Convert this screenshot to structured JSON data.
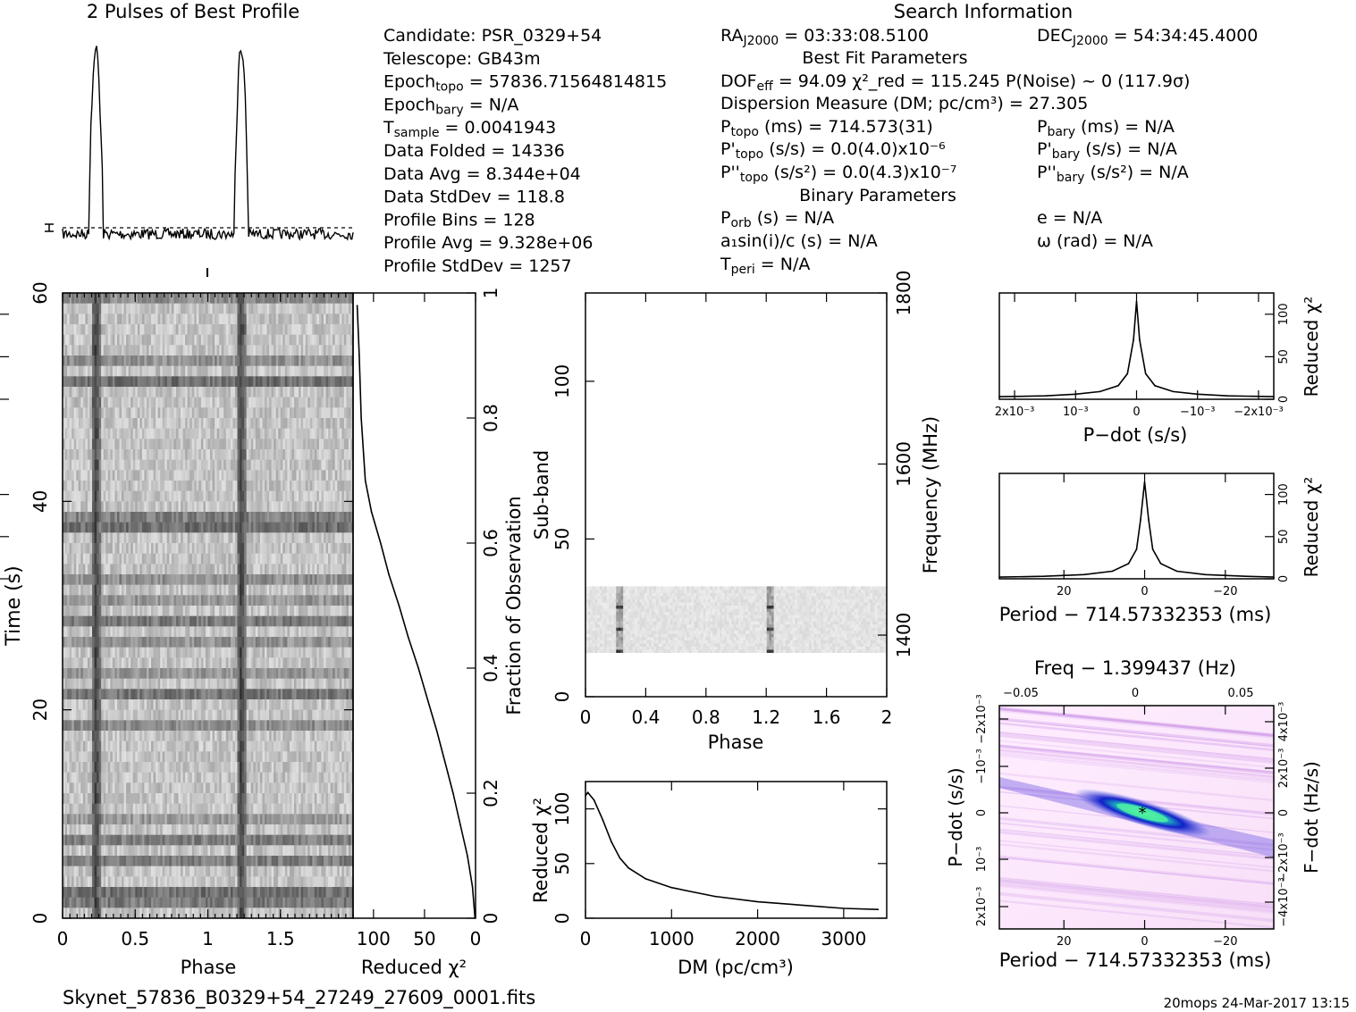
{
  "title": "2 Pulses of Best Profile",
  "search_info_title": "Search Information",
  "best_fit_title": "Best Fit Parameters",
  "binary_title": "Binary Parameters",
  "filename": "Skynet_57836_B0329+54_27249_27609_0001.fits",
  "footer_right": "20mops 24-Mar-2017 13:15",
  "info_left": [
    "Candidate:  PSR_0329+54",
    "Telescope:  GB43m",
    "Epoch_topo = 57836.71564814815",
    "Epoch_bary = N/A",
    "T_sample    =  0.0041943",
    "Data Folded  =  14336",
    "Data Avg     =  8.344e+04",
    "Data StdDev  =  118.8",
    "Profile Bins  =  128",
    "Profile Avg   =  9.328e+06",
    "Profile StdDev =  1257"
  ],
  "info_mid": {
    "ra": "RA_J2000 = 03:33:08.5100",
    "dof": "DOF_eff = 94.09  χ²_red = 115.245  P(Noise) ~ 0   (117.9σ)",
    "dm": "Dispersion Measure (DM; pc/cm³) = 27.305",
    "ptopo": "P_topo (ms) =  714.573(31)",
    "pdtopo": "P'_topo (s/s) = 0.0(4.0)x10⁻⁶",
    "pddtopo": "P''_topo (s/s²) = 0.0(4.3)x10⁻⁷",
    "porb": "P_orb (s) = N/A",
    "a1": "a₁sin(i)/c (s) = N/A",
    "tperi": "T_peri = N/A"
  },
  "info_right": {
    "dec": "DEC_J2000 = 54:34:45.4000",
    "pbary": "P_bary (ms) = N/A",
    "pdbary": "P'_bary (s/s) = N/A",
    "pddbary": "P''_bary (s/s²) = N/A",
    "e": "e = N/A",
    "omega": "ω (rad) = N/A"
  },
  "colors": {
    "axis": "#000000",
    "grey_dark": "#1a1a1a",
    "blue": "#1020c8",
    "magenta": "#ffe8ff",
    "green": "#40e080"
  },
  "chart_data": [
    {
      "id": "profile",
      "type": "line",
      "title": "2 Pulses of Best Profile",
      "xlim": [
        0,
        2
      ],
      "pulse_phases": [
        0.23,
        1.23
      ],
      "error_bar_label": ""
    },
    {
      "id": "time-phase",
      "type": "heatmap",
      "xlabel": "Phase",
      "ylabel": "Time (s)",
      "x_ticks": [
        "0",
        "0.5",
        "1",
        "1.5"
      ],
      "x_tick_values": [
        0,
        0.5,
        1,
        1.5
      ],
      "y_ticks": [
        "0",
        "20",
        "40",
        "60"
      ],
      "y_tick_values": [
        0,
        20,
        40,
        60
      ],
      "xlim": [
        0,
        2
      ],
      "ylim": [
        0,
        60
      ],
      "pulse_phases": [
        0.23,
        1.23
      ]
    },
    {
      "id": "chi-vs-time",
      "type": "line",
      "xlabel": "Reduced χ²",
      "ylabel": "Fraction of Observation",
      "x_ticks": [
        "100",
        "50",
        "0"
      ],
      "x_tick_values": [
        100,
        50,
        0
      ],
      "y_ticks": [
        "0",
        "0.2",
        "0.4",
        "0.6",
        "0.8",
        "1"
      ],
      "y_tick_values": [
        0,
        0.2,
        0.4,
        0.6,
        0.8,
        1
      ],
      "xlim": [
        120,
        0
      ],
      "ylim": [
        0,
        1
      ],
      "x": [
        0.5,
        3,
        8,
        15,
        22,
        30,
        38,
        47,
        56,
        66,
        75,
        85,
        93,
        102,
        108,
        112,
        114,
        116
      ],
      "y": [
        0.0,
        0.05,
        0.1,
        0.15,
        0.2,
        0.25,
        0.3,
        0.35,
        0.4,
        0.45,
        0.5,
        0.55,
        0.6,
        0.65,
        0.7,
        0.8,
        0.9,
        0.98
      ]
    },
    {
      "id": "subband-phase",
      "type": "heatmap",
      "xlabel": "Phase",
      "ylabel": "Sub-band",
      "y2label": "Frequency (MHz)",
      "x_ticks": [
        "0",
        "0.4",
        "0.8",
        "1.2",
        "1.6",
        "2"
      ],
      "x_tick_values": [
        0,
        0.4,
        0.8,
        1.2,
        1.6,
        2
      ],
      "y_ticks": [
        "0",
        "50",
        "100"
      ],
      "y_tick_values": [
        0,
        50,
        100
      ],
      "y2_ticks": [
        "1400",
        "1600",
        "1800"
      ],
      "y2_tick_values": [
        1400,
        1600,
        1800
      ],
      "xlim": [
        0,
        2
      ],
      "ylim": [
        0,
        128
      ],
      "y2lim": [
        1328,
        1800
      ],
      "band_range": [
        14,
        35
      ],
      "pulse_phases": [
        0.23,
        1.23
      ]
    },
    {
      "id": "dm-chi",
      "type": "line",
      "xlabel": "DM (pc/cm³)",
      "ylabel": "Reduced χ²",
      "x_ticks": [
        "0",
        "1000",
        "2000",
        "3000"
      ],
      "x_tick_values": [
        0,
        1000,
        2000,
        3000
      ],
      "y_ticks": [
        "0",
        "50",
        "100"
      ],
      "y_tick_values": [
        0,
        50,
        100
      ],
      "xlim": [
        0,
        3500
      ],
      "ylim": [
        0,
        125
      ],
      "x": [
        0,
        27,
        100,
        200,
        300,
        400,
        500,
        700,
        1000,
        1500,
        2000,
        2500,
        3000,
        3400
      ],
      "y": [
        112,
        115,
        108,
        90,
        70,
        55,
        46,
        36,
        28,
        20,
        15,
        12,
        9,
        8
      ]
    },
    {
      "id": "pdot-chi",
      "type": "line",
      "xlabel": "P−dot (s/s)",
      "ylabel": "Reduced χ²",
      "x_ticks": [
        "2x10⁻³",
        "10⁻³",
        "0",
        "−10⁻³",
        "−2x10⁻³"
      ],
      "x_tick_values": [
        0.002,
        0.001,
        0,
        -0.001,
        -0.002
      ],
      "y_ticks": [
        "0",
        "50",
        "100"
      ],
      "y_tick_values": [
        0,
        50,
        100
      ],
      "xlim": [
        0.00225,
        -0.00225
      ],
      "ylim": [
        0,
        125
      ],
      "x": [
        0.00225,
        0.0015,
        0.001,
        0.0006,
        0.0003,
        0.00015,
        5e-05,
        0,
        -5e-05,
        -0.00015,
        -0.0003,
        -0.0006,
        -0.001,
        -0.0015,
        -0.00225
      ],
      "y": [
        3,
        4,
        6,
        9,
        16,
        30,
        70,
        115,
        70,
        30,
        16,
        9,
        6,
        4,
        3
      ]
    },
    {
      "id": "period-chi",
      "type": "line",
      "xlabel": "Period − 714.57332353 (ms)",
      "ylabel": "Reduced χ²",
      "x_ticks": [
        "20",
        "0",
        "−20"
      ],
      "x_tick_values": [
        20,
        0,
        -20
      ],
      "y_ticks": [
        "0",
        "50",
        "100"
      ],
      "y_tick_values": [
        0,
        50,
        100
      ],
      "xlim": [
        36,
        -32
      ],
      "ylim": [
        0,
        125
      ],
      "x": [
        36,
        25,
        15,
        8,
        4,
        2,
        1,
        0,
        -1,
        -2,
        -4,
        -8,
        -15,
        -25,
        -32
      ],
      "y": [
        2,
        3,
        5,
        9,
        18,
        35,
        70,
        115,
        70,
        35,
        18,
        9,
        5,
        3,
        2
      ]
    },
    {
      "id": "period-pdot",
      "type": "heatmap",
      "xlabel": "Period − 714.57332353 (ms)",
      "ylabel": "P−dot (s/s)",
      "x2label": "Freq − 1.399437 (Hz)",
      "y2label": "F−dot (Hz/s)",
      "x_ticks": [
        "20",
        "0",
        "−20"
      ],
      "x_tick_values": [
        20,
        0,
        -20
      ],
      "x2_ticks": [
        "−0.05",
        "0",
        "0.05"
      ],
      "y_ticks": [
        "2x10⁻³",
        "10⁻³",
        "0",
        "−10⁻³",
        "−2x10⁻³"
      ],
      "y2_ticks": [
        "−4x10⁻³",
        "−2x10⁻³",
        "0",
        "2x10⁻³",
        "4x10⁻³"
      ],
      "xlim": [
        36,
        -32
      ],
      "ylim": [
        0.00225,
        -0.00225
      ],
      "best_fit_marker": [
        0,
        0
      ]
    }
  ]
}
